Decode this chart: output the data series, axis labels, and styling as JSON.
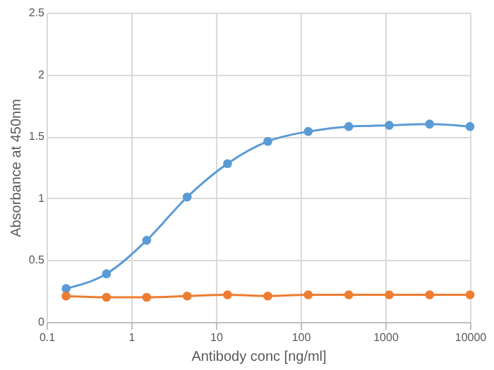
{
  "chart_data": {
    "type": "line",
    "xlabel": "Antibody conc [ng/ml]",
    "ylabel": "Absorbance at 450nm",
    "x": [
      0.17,
      0.51,
      1.52,
      4.57,
      13.7,
      41,
      123,
      370,
      1111,
      3333,
      10000
    ],
    "series": [
      {
        "color": "#5b9bd5",
        "values": [
          0.27,
          0.39,
          0.66,
          1.01,
          1.28,
          1.46,
          1.54,
          1.58,
          1.59,
          1.6,
          1.58
        ]
      },
      {
        "color": "#ed7d31",
        "values": [
          0.21,
          0.2,
          0.2,
          0.21,
          0.22,
          0.21,
          0.22,
          0.22,
          0.22,
          0.22,
          0.22
        ]
      }
    ],
    "log": "x",
    "xlim": [
      0.1,
      10000
    ],
    "xticks": [
      0.1,
      1,
      10,
      100,
      1000,
      10000
    ],
    "ylim": [
      0,
      2.5
    ],
    "yticks": [
      0,
      0.5,
      1,
      1.5,
      2,
      2.5
    ],
    "grid": true,
    "marker": "circle",
    "line_style": "solid"
  }
}
